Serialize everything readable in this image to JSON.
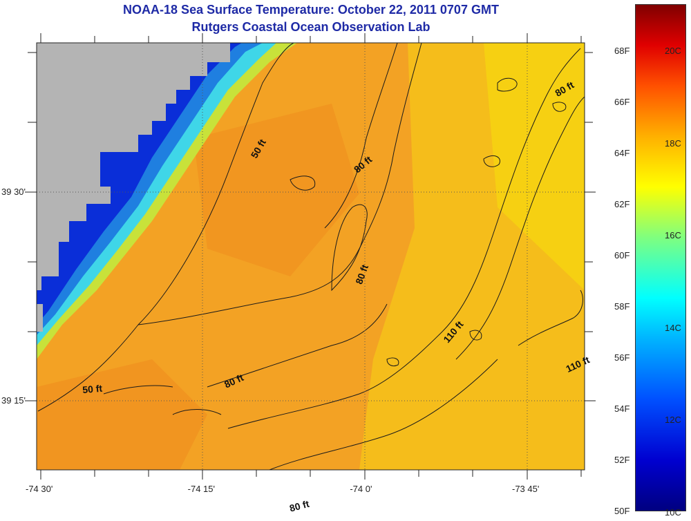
{
  "title": {
    "line1": "NOAA-18 Sea Surface Temperature:  October 22, 2011 0707 GMT",
    "line2": "Rutgers Coastal Ocean Observation Lab"
  },
  "map": {
    "lat_labels": [
      {
        "text": "39 30'",
        "lat": 39.5
      },
      {
        "text": "39 15'",
        "lat": 39.25
      }
    ],
    "lon_labels": [
      {
        "text": "-74 30'",
        "lon": -74.5
      },
      {
        "text": "-74 15'",
        "lon": -74.25
      },
      {
        "text": "-74 0'",
        "lon": -74.0
      },
      {
        "text": "-73 45'",
        "lon": -73.75
      }
    ],
    "contour_labels": [
      {
        "text": "50 ft",
        "lon": -74.16,
        "lat": 39.55,
        "angle": -60
      },
      {
        "text": "80 ft",
        "lon": -74.0,
        "lat": 39.53,
        "angle": -40
      },
      {
        "text": "80 ft",
        "lon": -73.69,
        "lat": 39.62,
        "angle": -30
      },
      {
        "text": "80 ft",
        "lon": -74.0,
        "lat": 39.4,
        "angle": -70
      },
      {
        "text": "110 ft",
        "lon": -73.86,
        "lat": 39.33,
        "angle": -50
      },
      {
        "text": "110 ft",
        "lon": -73.67,
        "lat": 39.29,
        "angle": -25
      },
      {
        "text": "50 ft",
        "lon": -74.42,
        "lat": 39.26,
        "angle": -5
      },
      {
        "text": "80 ft",
        "lon": -74.2,
        "lat": 39.27,
        "angle": -25
      },
      {
        "text": "80 ft",
        "lon": -74.1,
        "lat": 39.12,
        "angle": -15
      }
    ],
    "colors": {
      "land": "#b4b4b4",
      "water_base": "#f5a623",
      "contour": "#1a1a1a",
      "grid": "#555555"
    }
  },
  "colorbar": {
    "fahrenheit_labels": [
      "68F",
      "66F",
      "64F",
      "62F",
      "60F",
      "58F",
      "56F",
      "54F",
      "52F",
      "50F"
    ],
    "celsius_labels": [
      "20C",
      "18C",
      "16C",
      "14C",
      "12C",
      "10C"
    ]
  }
}
